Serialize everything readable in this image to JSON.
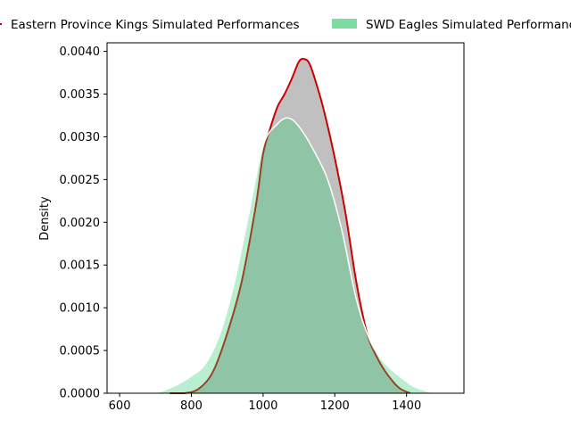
{
  "chart_data": {
    "type": "area",
    "title": "",
    "xlabel": "",
    "ylabel": "Density",
    "xlim": [
      565,
      1560
    ],
    "ylim": [
      0,
      0.0041
    ],
    "xticks": [
      600,
      800,
      1000,
      1200,
      1400
    ],
    "yticks": [
      0.0,
      0.0005,
      0.001,
      0.0015,
      0.002,
      0.0025,
      0.003,
      0.0035,
      0.004
    ],
    "ytick_format": 4,
    "grid": false,
    "legend_position": "top",
    "series": [
      {
        "name": "Eastern Province Kings Simulated Performances",
        "fill_color": "#c0c0c0",
        "line_color": "#cc0000",
        "points": [
          [
            740,
            0.0
          ],
          [
            780,
            0.0
          ],
          [
            820,
            5e-05
          ],
          [
            860,
            0.00025
          ],
          [
            900,
            0.0007
          ],
          [
            940,
            0.0013
          ],
          [
            980,
            0.0022
          ],
          [
            1000,
            0.0028
          ],
          [
            1020,
            0.0031
          ],
          [
            1040,
            0.00335
          ],
          [
            1060,
            0.0035
          ],
          [
            1080,
            0.00368
          ],
          [
            1100,
            0.00388
          ],
          [
            1115,
            0.00391
          ],
          [
            1130,
            0.00385
          ],
          [
            1150,
            0.0036
          ],
          [
            1170,
            0.0033
          ],
          [
            1200,
            0.00275
          ],
          [
            1230,
            0.0021
          ],
          [
            1260,
            0.0013
          ],
          [
            1290,
            0.0007
          ],
          [
            1320,
            0.0004
          ],
          [
            1350,
            0.0002
          ],
          [
            1380,
            6e-05
          ],
          [
            1410,
            0.0
          ]
        ]
      },
      {
        "name": "SWD Eagles Simulated Performances",
        "fill_color": "#2ecc71",
        "line_color": "#ffffff",
        "points": [
          [
            690,
            0.0
          ],
          [
            720,
            3e-05
          ],
          [
            760,
            0.0001
          ],
          [
            800,
            0.0002
          ],
          [
            840,
            0.00035
          ],
          [
            880,
            0.0007
          ],
          [
            920,
            0.0013
          ],
          [
            960,
            0.0021
          ],
          [
            1000,
            0.0029
          ],
          [
            1040,
            0.00315
          ],
          [
            1070,
            0.00322
          ],
          [
            1100,
            0.00312
          ],
          [
            1140,
            0.00285
          ],
          [
            1180,
            0.0025
          ],
          [
            1220,
            0.0019
          ],
          [
            1260,
            0.0011
          ],
          [
            1300,
            0.0006
          ],
          [
            1340,
            0.00035
          ],
          [
            1380,
            0.0002
          ],
          [
            1420,
            8e-05
          ],
          [
            1460,
            2e-05
          ],
          [
            1480,
            0.0
          ]
        ]
      }
    ]
  }
}
